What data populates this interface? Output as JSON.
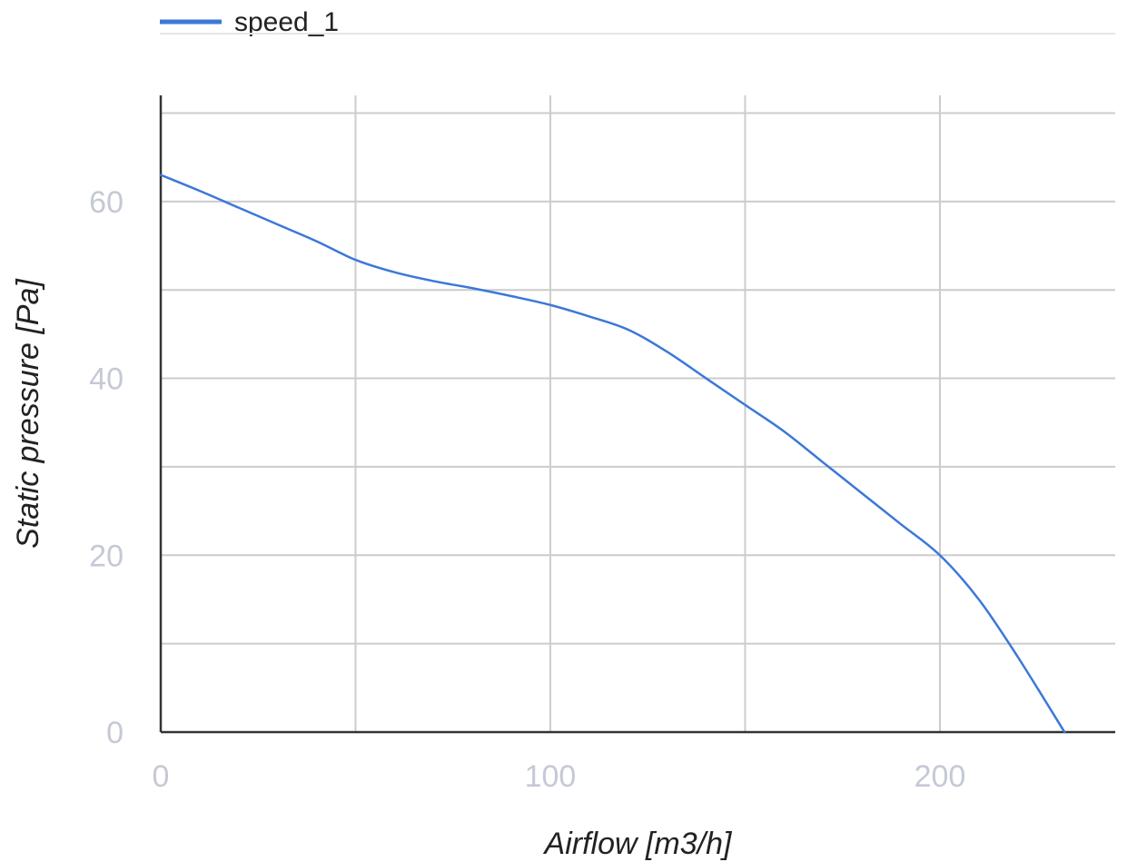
{
  "chart_data": {
    "type": "line",
    "title": "",
    "xlabel": "Airflow [m3/h]",
    "ylabel": "Static pressure [Pa]",
    "xlim": [
      0,
      245
    ],
    "ylim": [
      0,
      72
    ],
    "x_ticks": [
      0,
      100,
      200
    ],
    "y_ticks": [
      0,
      20,
      40,
      60
    ],
    "x_gridlines": [
      0,
      50,
      100,
      150,
      200
    ],
    "y_gridlines": [
      10,
      20,
      30,
      40,
      50,
      60,
      70
    ],
    "grid": true,
    "legend_position": "top-left",
    "series": [
      {
        "name": "speed_1",
        "color": "#3c78d8",
        "x": [
          0,
          10,
          20,
          30,
          40,
          50,
          60,
          70,
          80,
          90,
          100,
          110,
          120,
          130,
          140,
          150,
          160,
          170,
          180,
          190,
          200,
          210,
          220,
          232
        ],
        "y": [
          63,
          61.2,
          59.3,
          57.4,
          55.5,
          53.4,
          52.0,
          51.0,
          50.2,
          49.3,
          48.3,
          47.0,
          45.5,
          43.0,
          40.0,
          37.0,
          34.0,
          30.5,
          27.0,
          23.5,
          20.0,
          15.0,
          8.5,
          0
        ]
      }
    ]
  }
}
